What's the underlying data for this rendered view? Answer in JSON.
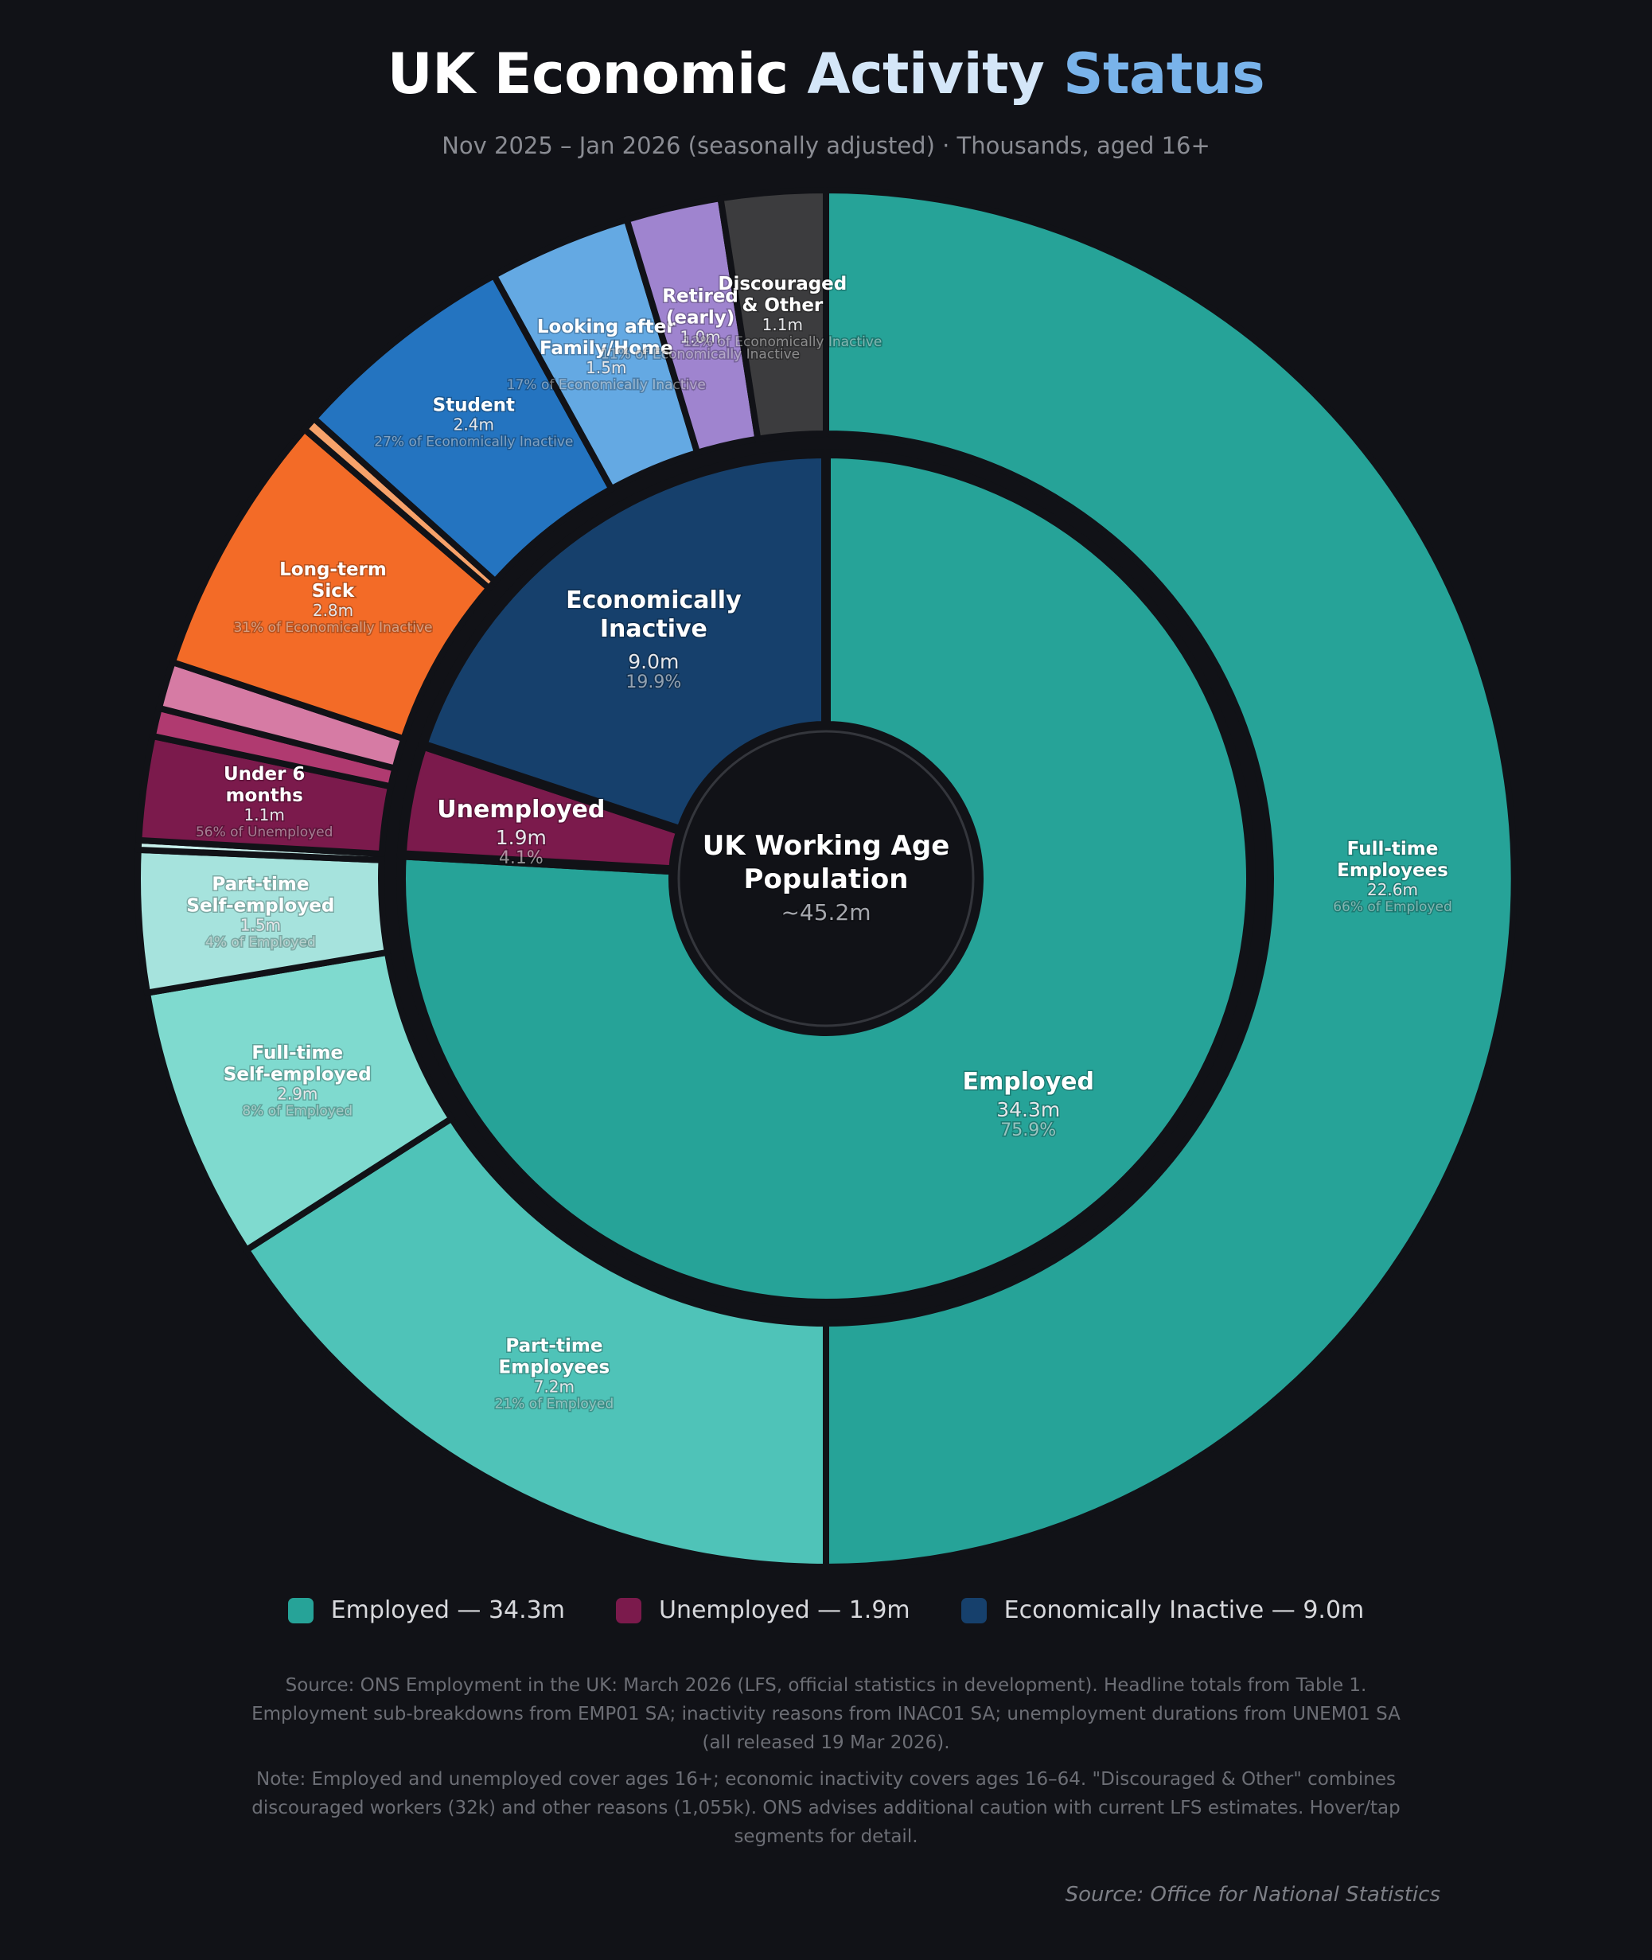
{
  "header": {
    "title_part1": "UK Economic",
    "title_part2": "Activity",
    "title_part3": "Status",
    "subtitle": "Nov 2025 – Jan 2026 (seasonally adjusted) · Thousands, aged 16+"
  },
  "chart_data": {
    "type": "pie",
    "subtype": "sunburst-donut",
    "start_angle": "top, clockwise",
    "center": {
      "title_line1": "UK Working Age",
      "title_line2": "Population",
      "value": "~45.2m"
    },
    "inner_ring": [
      {
        "name": "Employed",
        "value": 34.3,
        "value_label": "34.3m",
        "pct_label": "75.9%",
        "color": "#26a398"
      },
      {
        "name": "Unemployed",
        "value": 1.9,
        "value_label": "1.9m",
        "pct_label": "4.1%",
        "color": "#7b1a4c"
      },
      {
        "name_line1": "Economically",
        "name_line2": "Inactive",
        "value": 9.0,
        "value_label": "9.0m",
        "pct_label": "19.9%",
        "color": "#16406c"
      }
    ],
    "outer_ring": [
      {
        "parent": 0,
        "line1": "Full-time",
        "line2": "Employees",
        "value": 22.6,
        "value_label": "22.6m",
        "pct_label": "66% of Employed",
        "color": "#26a398"
      },
      {
        "parent": 0,
        "line1": "Part-time",
        "line2": "Employees",
        "value": 7.2,
        "value_label": "7.2m",
        "pct_label": "21% of Employed",
        "color": "#4fc3b8"
      },
      {
        "parent": 0,
        "line1": "Full-time",
        "line2": "Self-employed",
        "value": 2.9,
        "value_label": "2.9m",
        "pct_label": "8% of Employed",
        "color": "#7fdacf"
      },
      {
        "parent": 0,
        "line1": "Part-time",
        "line2": "Self-employed",
        "value": 1.5,
        "value_label": "1.5m",
        "pct_label": "4% of Employed",
        "color": "#a6e3dd"
      },
      {
        "parent": 0,
        "value": 0.1,
        "color": "#c8f0ec"
      },
      {
        "parent": 1,
        "line1": "Under 6",
        "line2": "months",
        "value": 1.1,
        "value_label": "1.1m",
        "pct_label": "56% of Unemployed",
        "color": "#7b1a4c"
      },
      {
        "parent": 1,
        "value": 0.3,
        "color": "#b03a70"
      },
      {
        "parent": 1,
        "value": 0.5,
        "color": "#d67ba4"
      },
      {
        "parent": 2,
        "line1": "Long-term",
        "line2": "Sick",
        "value": 2.8,
        "value_label": "2.8m",
        "pct_label": "31% of Economically Inactive",
        "color": "#f36b27"
      },
      {
        "parent": 2,
        "value": 0.15,
        "color": "#f7a26a"
      },
      {
        "parent": 2,
        "line1": "Student",
        "value": 2.4,
        "value_label": "2.4m",
        "pct_label": "27% of Economically Inactive",
        "color": "#2474c0"
      },
      {
        "parent": 2,
        "line1": "Looking after",
        "line2": "Family/Home",
        "value": 1.5,
        "value_label": "1.5m",
        "pct_label": "17% of Economically Inactive",
        "color": "#64a9e3"
      },
      {
        "parent": 2,
        "line1": "Retired",
        "line2": "(early)",
        "value": 1.0,
        "value_label": "1.0m",
        "pct_label": "11% of Economically Inactive",
        "color": "#9f84cf"
      },
      {
        "parent": 2,
        "line1": "Discouraged",
        "line2": "& Other",
        "value": 1.1,
        "value_label": "1.1m",
        "pct_label": "12% of Economically Inactive",
        "color": "#3c3c3e"
      }
    ],
    "legend": [
      {
        "label": "Employed — 34.3m",
        "color": "#26a398"
      },
      {
        "label": "Unemployed — 1.9m",
        "color": "#7b1a4c"
      },
      {
        "label": "Economically Inactive — 9.0m",
        "color": "#16406c"
      }
    ],
    "legend_position": "bottom"
  },
  "footer": {
    "source_note": "Source: ONS Employment in the UK: March 2026 (LFS, official statistics in development). Headline totals from Table 1. Employment sub-breakdowns from EMP01 SA; inactivity reasons from INAC01 SA; unemployment durations from UNEM01 SA (all released 19 Mar 2026).",
    "note": "Note: Employed and unemployed cover ages 16+; economic inactivity covers ages 16–64. \"Discouraged & Other\" combines discouraged workers (32k) and other reasons (1,055k). ONS advises additional caution with current LFS estimates. Hover/tap segments for detail.",
    "credit": "Source: Office for National Statistics"
  }
}
